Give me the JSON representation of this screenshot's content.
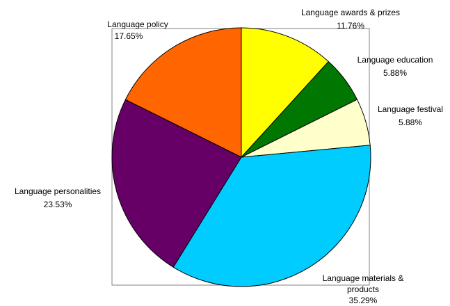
{
  "chart_data": {
    "type": "pie",
    "title": "",
    "start_angle_deg": 0,
    "direction": "clockwise",
    "colors": {
      "border": "#000000",
      "frame": "#808080"
    },
    "slices": [
      {
        "label": "Language awards & prizes",
        "label_lines": [
          "Language awards & prizes"
        ],
        "value": 11.76,
        "percent_text": "11.76%",
        "color": "#FFFF00"
      },
      {
        "label": "Language education",
        "label_lines": [
          "Language education"
        ],
        "value": 5.88,
        "percent_text": "5.88%",
        "color": "#007700"
      },
      {
        "label": "Language festival",
        "label_lines": [
          "Language festival"
        ],
        "value": 5.88,
        "percent_text": "5.88%",
        "color": "#FFFFCC"
      },
      {
        "label": "Language materials & products",
        "label_lines": [
          "Language materials &",
          "products"
        ],
        "value": 35.29,
        "percent_text": "35.29%",
        "color": "#00CCFF"
      },
      {
        "label": "Language personalities",
        "label_lines": [
          "Language personalities"
        ],
        "value": 23.53,
        "percent_text": "23.53%",
        "color": "#660066"
      },
      {
        "label": "Language policy",
        "label_lines": [
          "Language policy"
        ],
        "value": 17.65,
        "percent_text": "17.65%",
        "color": "#FF6600"
      }
    ]
  }
}
